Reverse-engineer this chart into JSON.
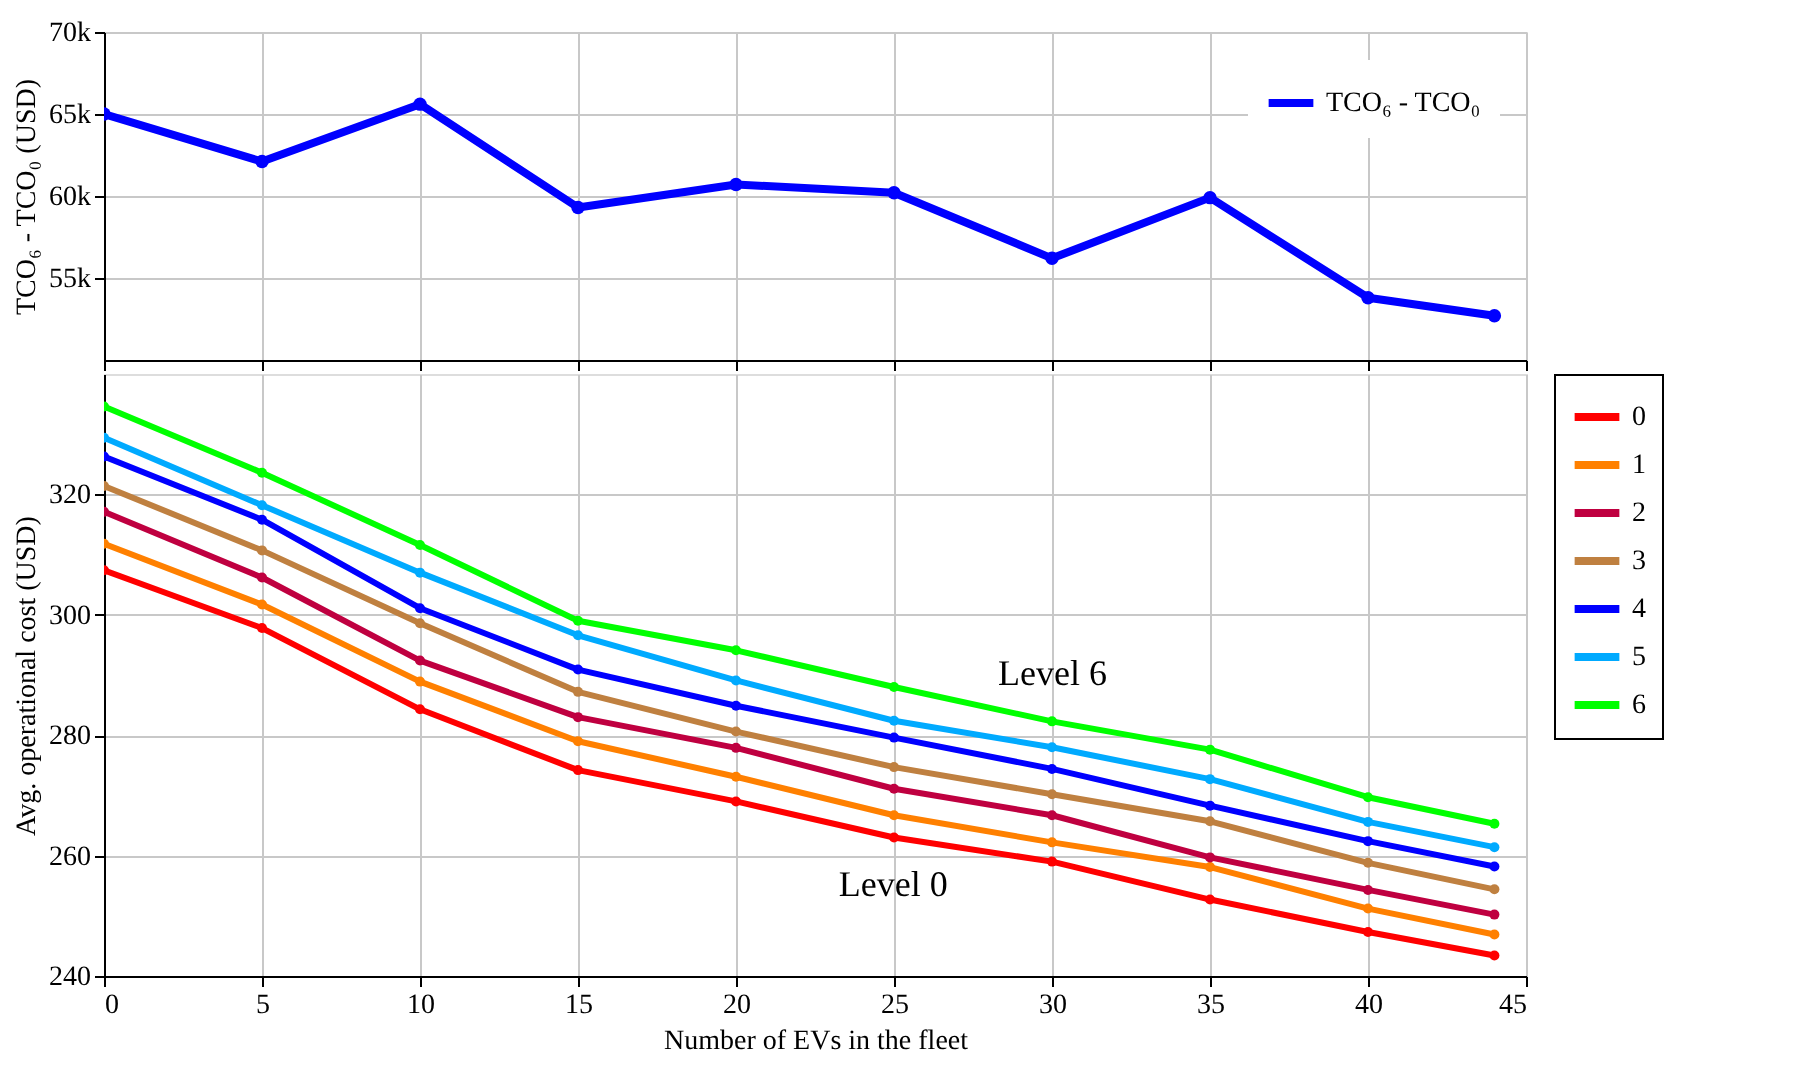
{
  "chart_data": [
    {
      "type": "line",
      "ylabel": "TCO₆ - TCO₀ (USD)",
      "x": [
        0,
        5,
        10,
        15,
        20,
        25,
        30,
        35,
        40,
        44
      ],
      "xlim": [
        0,
        45
      ],
      "xticks": [
        0,
        5,
        10,
        15,
        20,
        25,
        30,
        35,
        40,
        45
      ],
      "ylim": [
        50000,
        70000
      ],
      "yticks": [
        {
          "value": 55000,
          "label": "55k"
        },
        {
          "value": 60000,
          "label": "60k"
        },
        {
          "value": 65000,
          "label": "65k"
        },
        {
          "value": 70000,
          "label": "70k"
        }
      ],
      "tick_labels": "y",
      "grid": true,
      "legend": "top right",
      "marker": "circle",
      "line_style": "solid",
      "series": [
        {
          "name": "TCO₆ - TCO₀",
          "color": "#0000ff",
          "values": [
            65000,
            62100,
            65600,
            59300,
            60700,
            60200,
            56200,
            59900,
            53800,
            52700
          ]
        }
      ]
    },
    {
      "type": "line",
      "xlabel": "Number of EVs in the fleet",
      "ylabel": "Avg. operational cost (USD)",
      "x": [
        0,
        5,
        10,
        15,
        20,
        25,
        30,
        35,
        40,
        44
      ],
      "xlim": [
        0,
        45
      ],
      "xticks": [
        0,
        5,
        10,
        15,
        20,
        25,
        30,
        35,
        40,
        45
      ],
      "ylim": [
        240,
        340
      ],
      "yticks": [
        240,
        260,
        280,
        300,
        320
      ],
      "grid": true,
      "legend": "right",
      "marker": "circle",
      "line_style": "solid",
      "annotations": [
        "Level 6",
        "Level 0"
      ],
      "series": [
        {
          "name": "0",
          "color": "#ff0000",
          "values": [
            307.4,
            297.8,
            284.3,
            274.2,
            269,
            263,
            259,
            252.7,
            247.3,
            243.4
          ]
        },
        {
          "name": "1",
          "color": "#ff8000",
          "values": [
            311.8,
            301.7,
            288.9,
            279,
            273.1,
            266.7,
            262.2,
            258.1,
            251.2,
            246.9
          ]
        },
        {
          "name": "2",
          "color": "#bf0040",
          "values": [
            317.1,
            306.2,
            292.4,
            283,
            277.9,
            271.1,
            266.7,
            259.7,
            254.3,
            250.2
          ]
        },
        {
          "name": "3",
          "color": "#bf8040",
          "values": [
            321.4,
            310.7,
            298.6,
            287.2,
            280.6,
            274.7,
            270.2,
            265.7,
            258.8,
            254.4
          ]
        },
        {
          "name": "4",
          "color": "#0000ff",
          "values": [
            326.3,
            315.8,
            301.1,
            290.9,
            284.9,
            279.6,
            274.4,
            268.3,
            262.4,
            258.2
          ]
        },
        {
          "name": "5",
          "color": "#00aaff",
          "values": [
            329.4,
            318.2,
            307,
            296.6,
            289.1,
            282.4,
            278,
            272.7,
            265.6,
            261.4
          ]
        },
        {
          "name": "6",
          "color": "#00ff00",
          "values": [
            334.6,
            323.6,
            311.6,
            299,
            294.1,
            288,
            282.3,
            277.6,
            269.7,
            265.3
          ]
        }
      ]
    }
  ]
}
